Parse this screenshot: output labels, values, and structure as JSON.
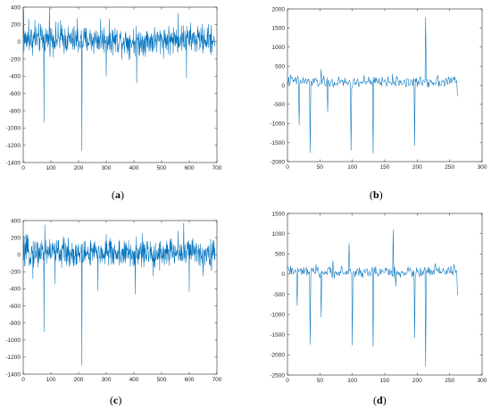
{
  "figure": {
    "captions": [
      {
        "open": "(",
        "letter": "a",
        "close": ")"
      },
      {
        "open": "(",
        "letter": "b",
        "close": ")"
      },
      {
        "open": "(",
        "letter": "c",
        "close": ")"
      },
      {
        "open": "(",
        "letter": "d",
        "close": ")"
      }
    ]
  },
  "chart_data": [
    {
      "type": "line",
      "panel": "a",
      "title": "",
      "xlabel": "",
      "ylabel": "",
      "xlim": [
        0,
        700
      ],
      "ylim": [
        -1400,
        400
      ],
      "xticks": [
        0,
        100,
        200,
        300,
        400,
        500,
        600,
        700
      ],
      "yticks": [
        400,
        200,
        0,
        -200,
        -400,
        -600,
        -800,
        -1000,
        -1200,
        -1400
      ],
      "grid": false,
      "color": "#0072bd",
      "series": [
        {
          "n_points": 693,
          "baseline_points": [
            [
              0,
              20
            ],
            [
              100,
              40
            ],
            [
              200,
              10
            ],
            [
              300,
              30
            ],
            [
              400,
              0
            ],
            [
              500,
              20
            ],
            [
              600,
              30
            ],
            [
              693,
              20
            ]
          ],
          "noise_amplitude": 180,
          "spikes": [
            [
              2,
              370
            ],
            [
              20,
              260
            ],
            [
              42,
              250
            ],
            [
              75,
              -930
            ],
            [
              95,
              390
            ],
            [
              135,
              250
            ],
            [
              195,
              270
            ],
            [
              212,
              -1260
            ],
            [
              280,
              260
            ],
            [
              300,
              -400
            ],
            [
              410,
              -480
            ],
            [
              560,
              330
            ],
            [
              590,
              -420
            ],
            [
              630,
              180
            ],
            [
              680,
              190
            ]
          ]
        }
      ]
    },
    {
      "type": "line",
      "panel": "b",
      "title": "",
      "xlabel": "",
      "ylabel": "",
      "xlim": [
        0,
        300
      ],
      "ylim": [
        -2000,
        2000
      ],
      "xticks": [
        0,
        50,
        100,
        150,
        200,
        250,
        300
      ],
      "yticks": [
        2000,
        1500,
        1000,
        500,
        0,
        -500,
        -1000,
        -1500,
        -2000
      ],
      "grid": false,
      "color": "#0072bd",
      "series": [
        {
          "n_points": 262,
          "baseline_points": [
            [
              0,
              120
            ],
            [
              50,
              80
            ],
            [
              100,
              60
            ],
            [
              150,
              100
            ],
            [
              200,
              80
            ],
            [
              262,
              120
            ]
          ],
          "noise_amplitude": 160,
          "spikes": [
            [
              5,
              280
            ],
            [
              18,
              -1040
            ],
            [
              35,
              -1760
            ],
            [
              52,
              420
            ],
            [
              62,
              -700
            ],
            [
              98,
              -1700
            ],
            [
              118,
              260
            ],
            [
              132,
              -1780
            ],
            [
              170,
              200
            ],
            [
              196,
              -1580
            ],
            [
              213,
              1780
            ],
            [
              232,
              260
            ],
            [
              258,
              220
            ],
            [
              262,
              -280
            ]
          ]
        }
      ]
    },
    {
      "type": "line",
      "panel": "c",
      "title": "",
      "xlabel": "",
      "ylabel": "",
      "xlim": [
        0,
        700
      ],
      "ylim": [
        -1400,
        400
      ],
      "xticks": [
        0,
        100,
        200,
        300,
        400,
        500,
        600,
        700
      ],
      "yticks": [
        400,
        200,
        0,
        -200,
        -400,
        -600,
        -800,
        -1000,
        -1200,
        -1400
      ],
      "grid": false,
      "color": "#0072bd",
      "series": [
        {
          "n_points": 693,
          "baseline_points": [
            [
              0,
              20
            ],
            [
              100,
              40
            ],
            [
              200,
              10
            ],
            [
              300,
              30
            ],
            [
              400,
              0
            ],
            [
              500,
              20
            ],
            [
              600,
              30
            ],
            [
              693,
              20
            ]
          ],
          "noise_amplitude": 180,
          "spikes": [
            [
              10,
              240
            ],
            [
              35,
              -280
            ],
            [
              75,
              -900
            ],
            [
              78,
              350
            ],
            [
              115,
              -340
            ],
            [
              212,
              -1300
            ],
            [
              270,
              -420
            ],
            [
              300,
              240
            ],
            [
              405,
              -460
            ],
            [
              430,
              250
            ],
            [
              470,
              -250
            ],
            [
              560,
              280
            ],
            [
              580,
              370
            ],
            [
              600,
              -430
            ],
            [
              650,
              -250
            ]
          ]
        }
      ]
    },
    {
      "type": "line",
      "panel": "d",
      "title": "",
      "xlabel": "",
      "ylabel": "",
      "xlim": [
        0,
        300
      ],
      "ylim": [
        -2500,
        1500
      ],
      "xticks": [
        0,
        50,
        100,
        150,
        200,
        250,
        300
      ],
      "yticks": [
        1500,
        1000,
        500,
        0,
        -500,
        -1000,
        -1500,
        -2000,
        -2500
      ],
      "grid": false,
      "color": "#0072bd",
      "series": [
        {
          "n_points": 262,
          "baseline_points": [
            [
              0,
              60
            ],
            [
              50,
              50
            ],
            [
              100,
              40
            ],
            [
              150,
              60
            ],
            [
              200,
              40
            ],
            [
              262,
              80
            ]
          ],
          "noise_amplitude": 150,
          "spikes": [
            [
              5,
              200
            ],
            [
              15,
              -780
            ],
            [
              35,
              -1740
            ],
            [
              52,
              -1060
            ],
            [
              70,
              330
            ],
            [
              95,
              760
            ],
            [
              100,
              -1760
            ],
            [
              132,
              -1800
            ],
            [
              163,
              1090
            ],
            [
              167,
              -300
            ],
            [
              196,
              -1580
            ],
            [
              213,
              -2280
            ],
            [
              228,
              260
            ],
            [
              262,
              -520
            ]
          ]
        }
      ]
    }
  ]
}
